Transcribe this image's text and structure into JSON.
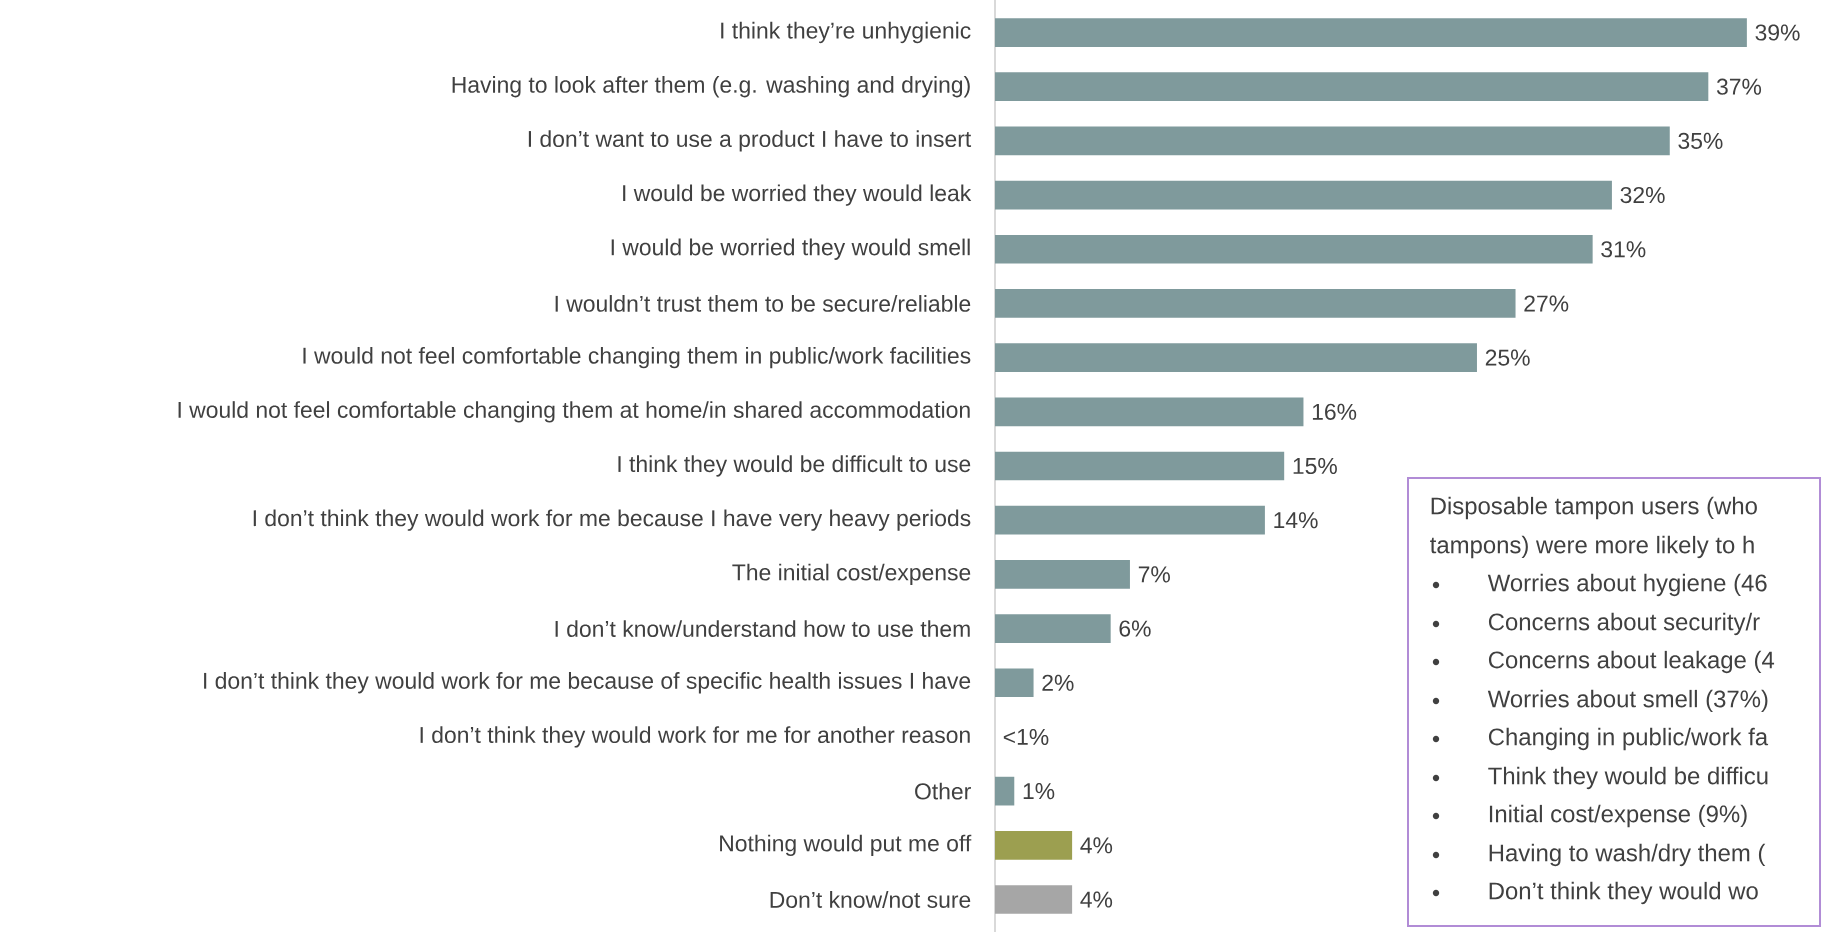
{
  "chart_data": {
    "type": "bar",
    "orientation": "horizontal",
    "categories": [
      "I think they’re unhygienic",
      "Having to look after them (e.g. washing and drying)",
      "I don’t want to use a product I have to insert",
      "I would be worried they would leak",
      "I would be worried they would smell",
      "I wouldn’t trust them to be secure/reliable",
      "I would not feel comfortable changing them in public/work facilities",
      "I would not feel comfortable changing them at home/in shared accommodation",
      "I think they would be difficult to use",
      "I don’t think they would work for me because I have very heavy periods",
      "The initial cost/expense",
      "I don’t know/understand how to use them",
      "I don’t think they would work for me because of specific health issues I have",
      "I don’t think they would work for me for another reason",
      "Other",
      "Nothing would put me off",
      "Don’t know/not sure"
    ],
    "values": [
      39,
      37,
      35,
      32,
      31,
      27,
      25,
      16,
      15,
      14,
      7,
      6,
      2,
      0,
      1,
      4,
      4
    ],
    "value_labels": [
      "39%",
      "37%",
      "35%",
      "32%",
      "31%",
      "27%",
      "25%",
      "16%",
      "15%",
      "14%",
      "7%",
      "6%",
      "2%",
      "<1%",
      "1%",
      "4%",
      "4%"
    ],
    "colors": [
      "#7f9a9c",
      "#7f9a9c",
      "#7f9a9c",
      "#7f9a9c",
      "#7f9a9c",
      "#7f9a9c",
      "#7f9a9c",
      "#7f9a9c",
      "#7f9a9c",
      "#7f9a9c",
      "#7f9a9c",
      "#7f9a9c",
      "#7f9a9c",
      "#7f9a9c",
      "#7f9a9c",
      "#9c9f50",
      "#a6a6a6"
    ],
    "xlim": [
      0,
      43
    ],
    "annotations": [
      "Disposable tampon users (who",
      "tampons) were more likely to h",
      "Worries about hygiene (46",
      "Concerns about security/r",
      "Concerns about leakage (4",
      "Worries about smell (37%)",
      "Changing in public/work fa",
      "Think they would be difficu",
      "Initial cost/expense (9%)",
      "Having to wash/dry them (",
      "Don’t think they would wo"
    ]
  }
}
